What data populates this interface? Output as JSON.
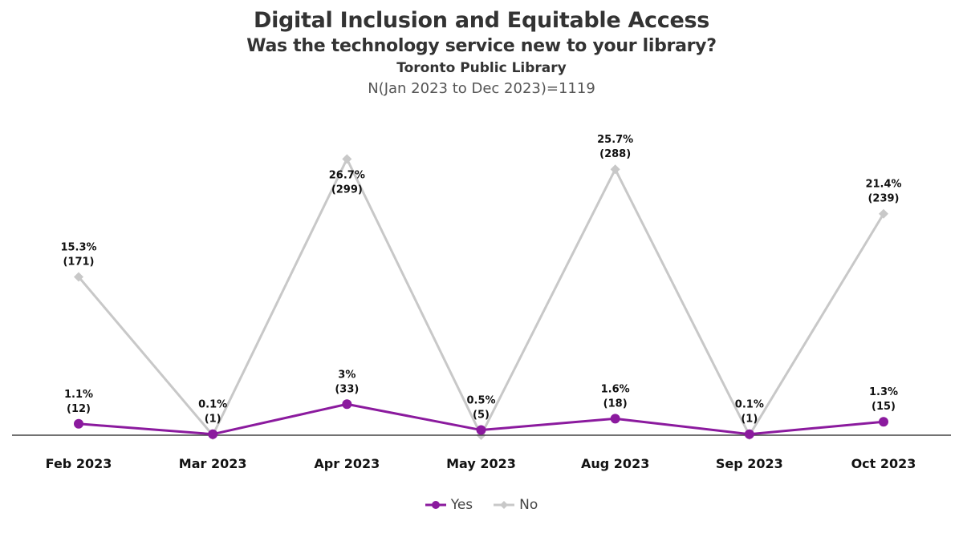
{
  "header": {
    "title": "Digital Inclusion and Equitable Access",
    "subtitle": "Was the technology service new to your library?",
    "organization": "Toronto Public Library",
    "sample": "N(Jan 2023 to Dec 2023)=1119"
  },
  "chart_data": {
    "type": "line",
    "title": "Digital Inclusion and Equitable Access",
    "subtitle": "Was the technology service new to your library?",
    "xlabel": "",
    "ylabel": "",
    "categories": [
      "Feb 2023",
      "Mar 2023",
      "Apr 2023",
      "May 2023",
      "Aug 2023",
      "Sep 2023",
      "Oct 2023"
    ],
    "ylim": [
      0,
      27.5
    ],
    "grid": false,
    "legend_position": "bottom",
    "series": [
      {
        "name": "Yes",
        "color": "#8B1A9E",
        "marker": "circle",
        "values": [
          1.1,
          0.1,
          3,
          0.5,
          1.6,
          0.1,
          1.3
        ],
        "counts": [
          12,
          1,
          33,
          5,
          18,
          1,
          15
        ],
        "labels": [
          "1.1%",
          "0.1%",
          "3%",
          "0.5%",
          "1.6%",
          "0.1%",
          "1.3%"
        ],
        "count_labels": [
          "(12)",
          "(1)",
          "(33)",
          "(5)",
          "(18)",
          "(1)",
          "(15)"
        ]
      },
      {
        "name": "No",
        "color": "#C8C8C8",
        "marker": "diamond",
        "values": [
          15.3,
          0.0,
          26.7,
          0.0,
          25.7,
          0.0,
          21.4
        ],
        "counts": [
          171,
          0,
          299,
          0,
          288,
          0,
          239
        ],
        "labels": [
          "15.3%",
          "",
          "26.7%",
          "",
          "25.7%",
          "",
          "21.4%"
        ],
        "count_labels": [
          "(171)",
          "",
          "(299)",
          "",
          "(288)",
          "",
          "(239)"
        ]
      }
    ]
  },
  "legend": {
    "items": [
      {
        "label": "Yes",
        "icon": "circle-marker-icon",
        "color": "#8B1A9E"
      },
      {
        "label": "No",
        "icon": "diamond-marker-icon",
        "color": "#C8C8C8"
      }
    ]
  }
}
